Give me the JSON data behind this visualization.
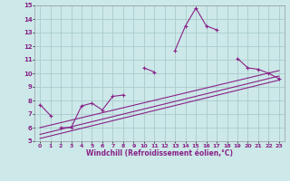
{
  "xlabel": "Windchill (Refroidissement éolien,°C)",
  "xlim": [
    -0.5,
    23.5
  ],
  "ylim": [
    5,
    15
  ],
  "xticks": [
    0,
    1,
    2,
    3,
    4,
    5,
    6,
    7,
    8,
    9,
    10,
    11,
    12,
    13,
    14,
    15,
    16,
    17,
    18,
    19,
    20,
    21,
    22,
    23
  ],
  "yticks": [
    5,
    6,
    7,
    8,
    9,
    10,
    11,
    12,
    13,
    14,
    15
  ],
  "bg_color": "#cce8e8",
  "line_color": "#882288",
  "grid_color": "#aacccc",
  "series": [
    {
      "x": [
        0,
        1,
        2,
        3,
        4,
        5,
        6,
        7,
        8,
        9,
        10,
        11,
        13,
        14,
        15,
        16,
        17,
        19,
        20,
        21,
        22,
        23
      ],
      "y": [
        7.7,
        6.9,
        6.0,
        6.0,
        7.6,
        7.8,
        7.3,
        8.3,
        8.4,
        8.3,
        10.4,
        10.1,
        11.7,
        13.5,
        14.8,
        13.5,
        13.2,
        11.1,
        10.4,
        10.3,
        10.0,
        9.6
      ],
      "marker": true,
      "segments": [
        {
          "x": [
            0,
            1
          ],
          "y": [
            7.7,
            6.9
          ]
        },
        {
          "x": [
            2,
            3,
            4,
            5,
            6,
            7,
            8
          ],
          "y": [
            6.0,
            6.0,
            7.6,
            7.8,
            7.3,
            8.3,
            8.4
          ]
        },
        {
          "x": [
            10,
            11
          ],
          "y": [
            10.4,
            10.1
          ]
        },
        {
          "x": [
            13,
            14,
            15,
            16,
            17
          ],
          "y": [
            11.7,
            13.5,
            14.8,
            13.5,
            13.2
          ]
        },
        {
          "x": [
            19,
            20,
            21,
            22,
            23
          ],
          "y": [
            11.1,
            10.4,
            10.3,
            10.0,
            9.6
          ]
        }
      ]
    },
    {
      "x": [
        0,
        23
      ],
      "y": [
        5.2,
        9.5
      ],
      "marker": false
    },
    {
      "x": [
        0,
        23
      ],
      "y": [
        5.5,
        9.8
      ],
      "marker": false
    },
    {
      "x": [
        0,
        23
      ],
      "y": [
        6.0,
        10.2
      ],
      "marker": false
    }
  ]
}
